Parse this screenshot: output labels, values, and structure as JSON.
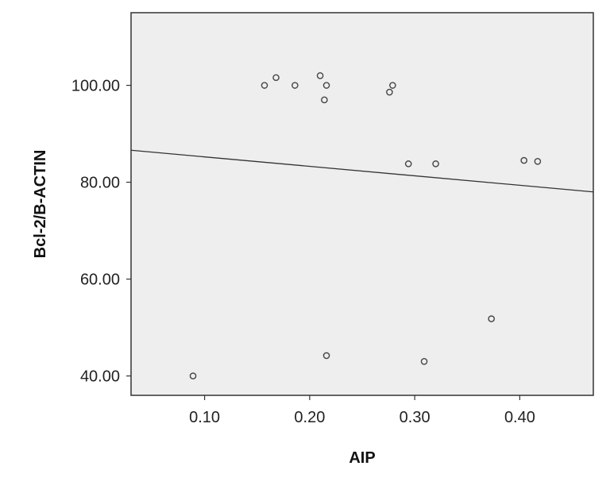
{
  "chart_data": {
    "type": "scatter",
    "title": "",
    "xlabel": "AIP",
    "ylabel": "Bcl-2/B-ACTIN",
    "xlim": [
      0.03,
      0.47
    ],
    "ylim": [
      36.0,
      115.0
    ],
    "x_ticks": [
      "0.10",
      "0.20",
      "0.30",
      "0.40"
    ],
    "x_tick_values": [
      0.1,
      0.2,
      0.3,
      0.4
    ],
    "y_ticks": [
      "40.00",
      "60.00",
      "80.00",
      "100.00"
    ],
    "y_tick_values": [
      40,
      60,
      80,
      100
    ],
    "grid": false,
    "legend": "none",
    "colors": {
      "plot_background": "#eeeeee",
      "frame": "#333333",
      "marker_edge": "#444444",
      "fit_line": "#333333"
    },
    "points": [
      {
        "x": 0.089,
        "y": 40.0
      },
      {
        "x": 0.157,
        "y": 100.0
      },
      {
        "x": 0.168,
        "y": 101.6
      },
      {
        "x": 0.186,
        "y": 100.0
      },
      {
        "x": 0.21,
        "y": 102.0
      },
      {
        "x": 0.216,
        "y": 100.0
      },
      {
        "x": 0.214,
        "y": 97.0
      },
      {
        "x": 0.216,
        "y": 44.2
      },
      {
        "x": 0.276,
        "y": 98.6
      },
      {
        "x": 0.279,
        "y": 100.0
      },
      {
        "x": 0.294,
        "y": 83.8
      },
      {
        "x": 0.309,
        "y": 43.0
      },
      {
        "x": 0.32,
        "y": 83.8
      },
      {
        "x": 0.373,
        "y": 51.8
      },
      {
        "x": 0.404,
        "y": 84.5
      },
      {
        "x": 0.417,
        "y": 84.3
      }
    ],
    "fit_line": {
      "type": "linear",
      "x": [
        0.03,
        0.47
      ],
      "y": [
        86.6,
        78.0
      ]
    }
  }
}
